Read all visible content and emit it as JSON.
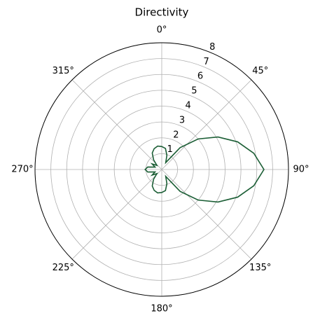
{
  "chart_data": {
    "type": "polar",
    "title": "Directivity",
    "x": [
      0,
      10,
      20,
      30,
      40,
      50,
      60,
      70,
      80,
      90,
      100,
      110,
      120,
      130,
      140,
      150,
      160,
      170,
      180,
      190,
      200,
      210,
      220,
      230,
      240,
      250,
      260,
      270,
      280,
      290,
      300,
      310,
      320,
      330,
      340,
      350
    ],
    "values": [
      1.45,
      1.35,
      0.95,
      0.5,
      1.8,
      3.0,
      4.1,
      5.1,
      5.9,
      6.45,
      5.9,
      5.1,
      4.1,
      3.0,
      1.8,
      0.5,
      0.95,
      1.35,
      1.45,
      1.5,
      1.4,
      1.2,
      0.8,
      0.4,
      0.7,
      0.45,
      0.9,
      1.05,
      0.9,
      0.45,
      0.7,
      0.4,
      0.8,
      1.2,
      1.4,
      1.5
    ],
    "color": "#1b5e35",
    "ylim": [
      0,
      8
    ],
    "yticks": [
      1,
      2,
      3,
      4,
      5,
      6,
      7,
      8
    ],
    "xticks": [
      {
        "value": 0,
        "label": "0°"
      },
      {
        "value": 45,
        "label": "45°"
      },
      {
        "value": 90,
        "label": "90°"
      },
      {
        "value": 135,
        "label": "135°"
      },
      {
        "value": 180,
        "label": "180°"
      },
      {
        "value": 225,
        "label": "225°"
      },
      {
        "value": 270,
        "label": "270°"
      },
      {
        "value": 315,
        "label": "315°"
      }
    ],
    "grid": true
  }
}
